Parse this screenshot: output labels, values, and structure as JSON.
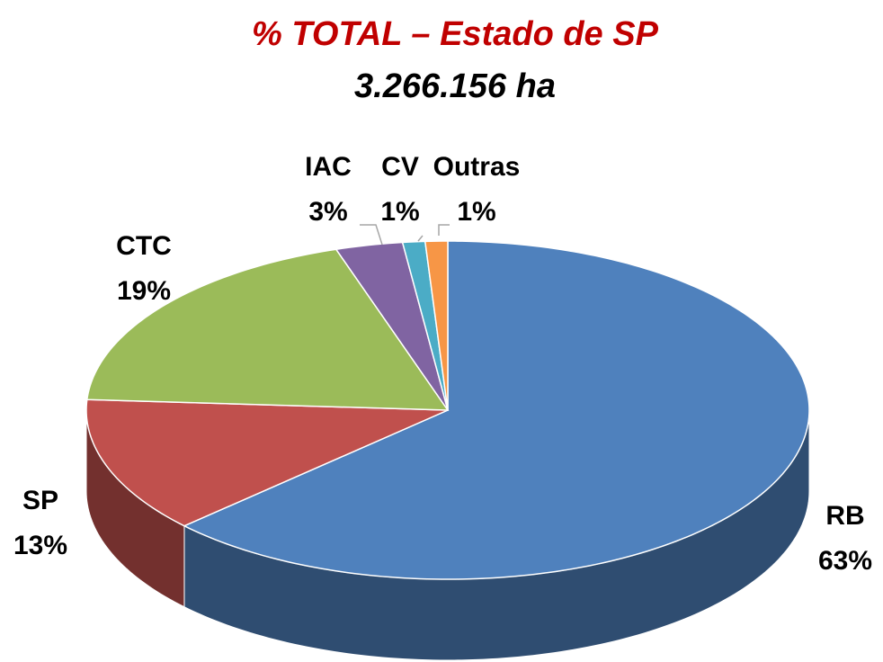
{
  "chart_data": {
    "type": "pie",
    "title": "% TOTAL – Estado de SP",
    "subtitle": "3.266.156 ha",
    "categories": [
      "RB",
      "SP",
      "CTC",
      "IAC",
      "CV",
      "Outras"
    ],
    "values": [
      63,
      13,
      19,
      3,
      1,
      1
    ],
    "value_labels": [
      "63%",
      "13%",
      "19%",
      "3%",
      "1%",
      "1%"
    ],
    "colors": [
      "#4f81bd",
      "#c0504d",
      "#9bbb59",
      "#8064a2",
      "#4bacc6",
      "#f79646"
    ]
  }
}
